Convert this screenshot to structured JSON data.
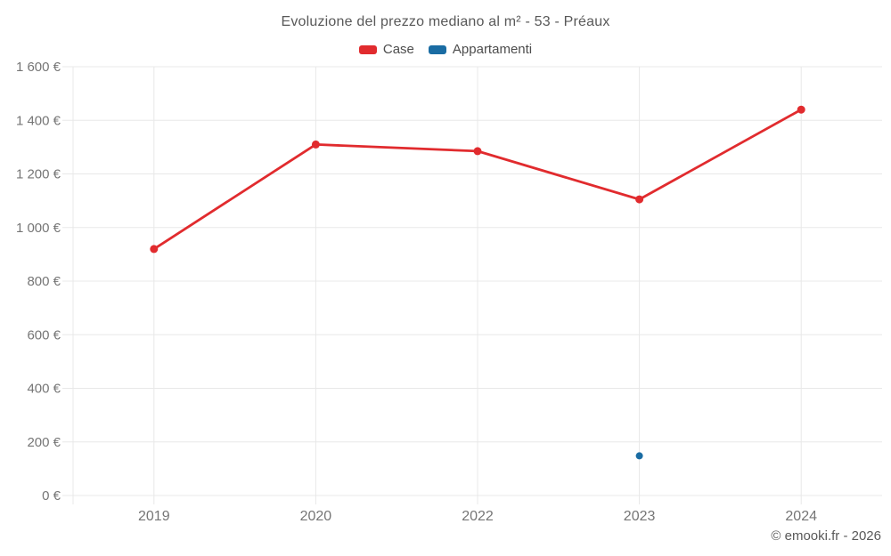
{
  "chart_data": {
    "type": "line",
    "title": "Evoluzione del prezzo mediano al m² - 53 - Préaux",
    "categories": [
      "2019",
      "2020",
      "2022",
      "2023",
      "2024"
    ],
    "series": [
      {
        "name": "Case",
        "color": "#e12b2e",
        "values": [
          920,
          1310,
          1285,
          1105,
          1440
        ],
        "point_radius": 4.5,
        "line_width": 2.8
      },
      {
        "name": "Appartamenti",
        "color": "#1a6ca3",
        "values": [
          null,
          null,
          null,
          148,
          null
        ],
        "point_radius": 4,
        "line_width": 2.8
      }
    ],
    "ylim": [
      0,
      1600
    ],
    "ytick_step": 200,
    "ytick_labels": [
      "0 €",
      "200 €",
      "400 €",
      "600 €",
      "800 €",
      "1 000 €",
      "1 200 €",
      "1 400 €",
      "1 600 €"
    ],
    "xlabel": "",
    "ylabel": "",
    "grid": true,
    "legend_position": "top",
    "unit": "€"
  },
  "footer": {
    "text": "© emooki.fr - 2026"
  },
  "colors": {
    "grid": "#e8e8e8",
    "tick_text": "#757575",
    "title_text": "#595959",
    "background": "#ffffff"
  }
}
